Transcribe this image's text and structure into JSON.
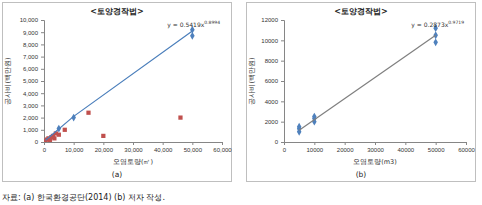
{
  "chart_data": [
    {
      "type": "scatter",
      "title": "<토양경작법>",
      "subtitle": "(a)",
      "x_label": "오염토량(㎥)",
      "y_label": "공사비(백만원)",
      "annotations": [
        {
          "text": "y = 0.5419x",
          "sup": "0.8994"
        }
      ],
      "xlim": [
        0,
        60000
      ],
      "xticks": [
        0,
        {
          "value": 10000,
          "label": "10,000"
        },
        {
          "value": 20000,
          "label": "20,000"
        },
        {
          "value": 30000,
          "label": "30,000"
        },
        {
          "value": 40000,
          "label": "40,000"
        },
        {
          "value": 50000,
          "label": "50,000"
        },
        {
          "value": 60000,
          "label": "60,000"
        }
      ],
      "ylim": [
        0,
        10000
      ],
      "yticks": [
        0,
        {
          "value": 1000,
          "label": "1,000"
        },
        {
          "value": 2000,
          "label": "2,000"
        },
        {
          "value": 3000,
          "label": "3,000"
        },
        {
          "value": 4000,
          "label": "4,000"
        },
        {
          "value": 5000,
          "label": "5,000"
        },
        {
          "value": 6000,
          "label": "6,000"
        },
        {
          "value": 7000,
          "label": "7,000"
        },
        {
          "value": 8000,
          "label": "8,000"
        },
        {
          "value": 9000,
          "label": "9,000"
        },
        {
          "value": 10000,
          "label": "10,000"
        }
      ],
      "grid": false,
      "series": [
        {
          "type": "scatter",
          "color": "#4f81bd",
          "marker": "diamond",
          "x": [
            5000,
            10000,
            50000,
            50000
          ],
          "values": [
            1100,
            2000,
            9200,
            8700
          ]
        },
        {
          "type": "scatter",
          "color": "#c0504d",
          "marker": "square",
          "x": [
            500,
            1000,
            1500,
            2000,
            2500,
            3000,
            3500,
            4000,
            5000,
            7000,
            15000,
            20000,
            46000
          ],
          "values": [
            100,
            200,
            300,
            150,
            400,
            500,
            300,
            700,
            600,
            1000,
            2400,
            500,
            2000
          ]
        },
        {
          "type": "line",
          "color": "#4a7ebb",
          "line_style": "solid",
          "x": [
            500,
            10000,
            50000
          ],
          "values": [
            150,
            2100,
            9100
          ]
        }
      ]
    },
    {
      "type": "scatter",
      "title": "<토양경작법>",
      "subtitle": "(b)",
      "x_label": "오염토량(m3)",
      "y_label": "공사비(백만원)",
      "annotations": [
        {
          "text": "y = 0.2873x",
          "sup": "0.9719"
        }
      ],
      "xlim": [
        0,
        60000
      ],
      "xticks": [
        0,
        10000,
        20000,
        30000,
        40000,
        50000,
        60000
      ],
      "ylim": [
        0,
        12000
      ],
      "yticks": [
        0,
        2000,
        4000,
        6000,
        8000,
        10000,
        12000
      ],
      "grid": false,
      "series": [
        {
          "type": "scatter",
          "color": "#4f81bd",
          "marker": "diamond",
          "x": [
            5000,
            5000,
            5000,
            10000,
            10000,
            10000,
            50000,
            50000,
            50000
          ],
          "values": [
            1000,
            1300,
            1500,
            2000,
            2300,
            2500,
            9800,
            10500,
            11200
          ]
        },
        {
          "type": "line",
          "color": "#7f7f7f",
          "line_style": "solid",
          "x": [
            5000,
            50000
          ],
          "values": [
            1150,
            10500
          ]
        }
      ]
    }
  ],
  "caption": "자료: (a) 한국환경공단(2014) (b) 저자 작성."
}
